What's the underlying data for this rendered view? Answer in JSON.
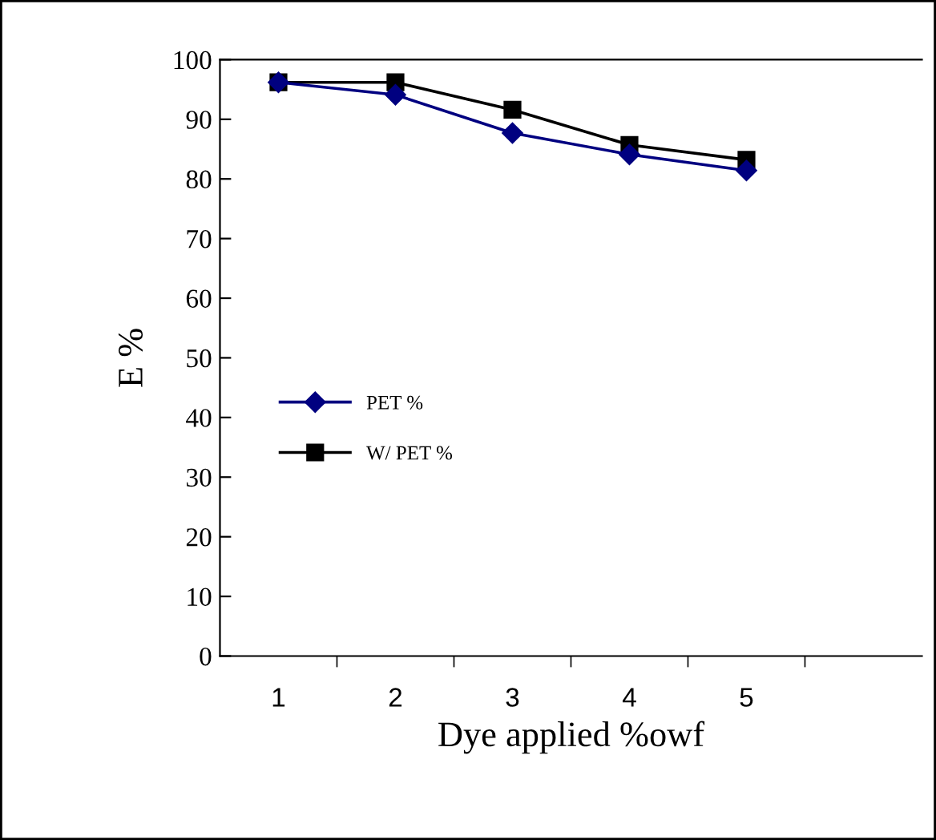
{
  "chart_data": {
    "type": "line",
    "xlabel": "Dye applied %owf",
    "ylabel": "E %",
    "categories": [
      "1",
      "2",
      "3",
      "4",
      "5",
      null
    ],
    "series": [
      {
        "name": "PET %",
        "color": "#000080",
        "marker": "diamond",
        "values": [
          96.2,
          94.1,
          87.7,
          84.1,
          81.4,
          null
        ]
      },
      {
        "name": "W/ PET %",
        "color": "#000000",
        "marker": "square",
        "values": [
          96.2,
          96.2,
          91.6,
          85.7,
          83.2,
          null
        ]
      }
    ],
    "ylim": [
      0,
      100
    ],
    "yticks": [
      0,
      10,
      20,
      30,
      40,
      50,
      60,
      70,
      80,
      90,
      100
    ],
    "grid": false,
    "legend": "center left",
    "line_style": "solid"
  }
}
